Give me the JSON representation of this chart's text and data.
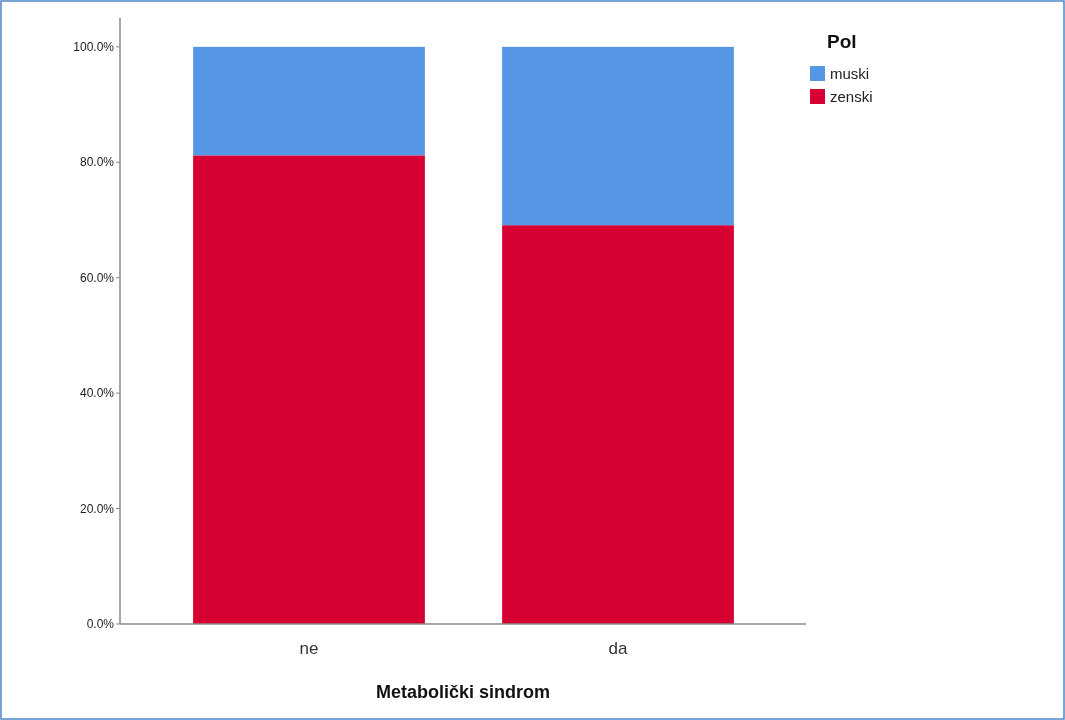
{
  "chart_data": {
    "type": "bar",
    "stacked": true,
    "xlabel": "Metabolički sindrom",
    "legend_title": "Pol",
    "categories": [
      "ne",
      "da"
    ],
    "series": [
      {
        "name": "zenski",
        "color": "#d70032",
        "values": [
          81.2,
          69.1
        ]
      },
      {
        "name": "muski",
        "color": "#5597e4",
        "values": [
          18.8,
          30.9
        ]
      }
    ],
    "ylim": [
      0,
      105
    ],
    "yticks": [
      {
        "value": 0,
        "label": "0.0%"
      },
      {
        "value": 20,
        "label": "20.0%"
      },
      {
        "value": 40,
        "label": "40.0%"
      },
      {
        "value": 60,
        "label": "60.0%"
      },
      {
        "value": 80,
        "label": "80.0%"
      },
      {
        "value": 100,
        "label": "100.0%"
      }
    ],
    "grid": false,
    "legend": "top right"
  }
}
